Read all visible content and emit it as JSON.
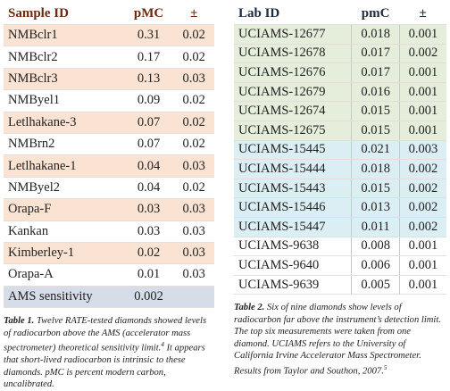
{
  "tables": [
    {
      "header": [
        "Sample ID",
        "pMC",
        "±"
      ],
      "rows": [
        [
          "NMBclr1",
          "0.31",
          "0.02"
        ],
        [
          "NMBclr2",
          "0.17",
          "0.02"
        ],
        [
          "NMBclr3",
          "0.13",
          "0.03"
        ],
        [
          "NMByel1",
          "0.09",
          "0.02"
        ],
        [
          "Letlhakane-3",
          "0.07",
          "0.02"
        ],
        [
          "NMBrn2",
          "0.07",
          "0.02"
        ],
        [
          "Letlhakane-1",
          "0.04",
          "0.03"
        ],
        [
          "NMByel2",
          "0.04",
          "0.02"
        ],
        [
          "Orapa-F",
          "0.03",
          "0.03"
        ],
        [
          "Kankan",
          "0.03",
          "0.03"
        ],
        [
          "Kimberley-1",
          "0.02",
          "0.03"
        ],
        [
          "Orapa-A",
          "0.01",
          "0.03"
        ],
        [
          "AMS sensitivity",
          "0.002"
        ]
      ],
      "caption": {
        "label": "Table 1.",
        "before": "Twelve RATE-tested diamonds showed levels of radiocarbon above the AMS (accelerator mass spectrometer) theoretical sensitivity limit.",
        "sup": "4",
        "after": "It appears that short-lived radiocarbon is intrinsic to these diamonds. pMC is percent modern carbon, uncalibrated."
      }
    },
    {
      "header": [
        "Lab ID",
        "pmC",
        "±"
      ],
      "rows": [
        [
          "UCIAMS-12677",
          "0.018",
          "0.001"
        ],
        [
          "UCIAMS-12678",
          "0.017",
          "0.002"
        ],
        [
          "UCIAMS-12676",
          "0.017",
          "0.001"
        ],
        [
          "UCIAMS-12679",
          "0.016",
          "0.001"
        ],
        [
          "UCIAMS-12674",
          "0.015",
          "0.001"
        ],
        [
          "UCIAMS-12675",
          "0.015",
          "0.001"
        ],
        [
          "UCIAMS-15445",
          "0.021",
          "0.003"
        ],
        [
          "UCIAMS-15444",
          "0.018",
          "0.002"
        ],
        [
          "UCIAMS-15443",
          "0.015",
          "0.002"
        ],
        [
          "UCIAMS-15446",
          "0.013",
          "0.002"
        ],
        [
          "UCIAMS-15447",
          "0.011",
          "0.002"
        ],
        [
          "UCIAMS-9638",
          "0.008",
          "0.001"
        ],
        [
          "UCIAMS-9640",
          "0.006",
          "0.001"
        ],
        [
          "UCIAMS-9639",
          "0.005",
          "0.001"
        ]
      ],
      "caption": {
        "label": "Table 2.",
        "before": "Six of nine diamonds show levels of radiocarbon far above the instrument’s detection limit. The top six measurements were taken from one diamond. UCIAMS refers to the University of California Irvine Accelerator Mass Spectrometer. Results from Taylor and Southon, 2007.",
        "sup": "5",
        "after": ""
      }
    }
  ]
}
